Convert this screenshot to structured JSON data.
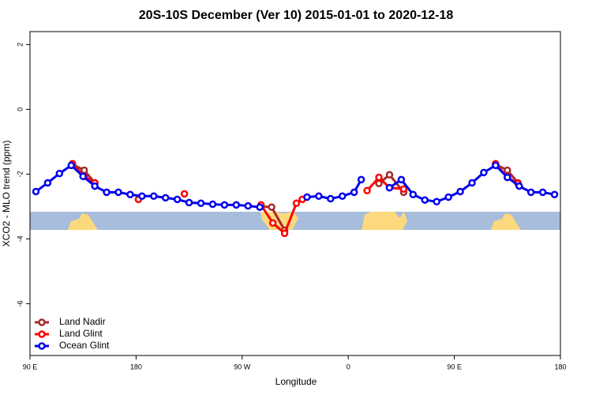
{
  "chart_data": {
    "type": "line",
    "title": "20S-10S December (Ver 10)   2015-01-01 to 2020-12-18",
    "x_label": "Longitude",
    "y_label": "XCO2 - MLO trend (ppm)",
    "xlim": [
      90,
      540
    ],
    "ylim": [
      -7.6,
      2.4
    ],
    "xticks": [
      {
        "value": 90,
        "label": "90 E"
      },
      {
        "value": 180,
        "label": "180"
      },
      {
        "value": 270,
        "label": "90 W"
      },
      {
        "value": 360,
        "label": "0"
      },
      {
        "value": 450,
        "label": "90 E"
      },
      {
        "value": 540,
        "label": "180"
      }
    ],
    "yticks": [
      2,
      0,
      -2,
      -4,
      -6
    ],
    "legend": "bottom-left",
    "series": [
      {
        "name": "Land Nadir",
        "color": "#a52a2a",
        "x": [
          126,
          136,
          145,
          200,
          286,
          295,
          306,
          350,
          386,
          395,
          407,
          450,
          485,
          495,
          504
        ],
        "values": [
          -1.7,
          -1.88,
          -2.27,
          null,
          -3.0,
          -3.02,
          -3.73,
          null,
          -2.29,
          -2.02,
          -2.56,
          null,
          -1.7,
          -1.88,
          -2.27
        ]
      },
      {
        "name": "Land Glint",
        "color": "#ff0000",
        "x": [
          126,
          136,
          145,
          160,
          182,
          200,
          221,
          250,
          286,
          296,
          306,
          316,
          321,
          350,
          376,
          386,
          395,
          407,
          450,
          485,
          495,
          504
        ],
        "values": [
          -1.68,
          -2.07,
          -2.27,
          null,
          -2.78,
          null,
          -2.61,
          null,
          -2.95,
          -3.51,
          -3.83,
          -2.9,
          -2.78,
          null,
          -2.51,
          -2.1,
          -2.42,
          -2.46,
          null,
          -1.68,
          -2.1,
          -2.29
        ]
      },
      {
        "name": "Ocean Glint",
        "color": "#0000ee",
        "x": [
          95,
          105,
          115,
          125,
          135,
          145,
          155,
          165,
          175,
          185,
          195,
          205,
          215,
          225,
          235,
          245,
          255,
          265,
          275,
          285,
          295,
          325,
          335,
          345,
          355,
          365,
          371,
          385,
          395,
          405,
          415,
          425,
          435,
          445,
          455,
          465,
          475,
          485,
          495,
          505,
          515,
          525,
          535
        ],
        "values": [
          -2.54,
          -2.27,
          -1.98,
          -1.73,
          -2.07,
          -2.37,
          -2.56,
          -2.56,
          -2.63,
          -2.68,
          -2.68,
          -2.73,
          -2.78,
          -2.88,
          -2.9,
          -2.93,
          -2.95,
          -2.95,
          -2.98,
          -3.02,
          null,
          -2.71,
          -2.68,
          -2.76,
          -2.68,
          -2.56,
          -2.17,
          null,
          -2.42,
          -2.17,
          -2.63,
          -2.8,
          -2.85,
          -2.71,
          -2.54,
          -2.27,
          -1.95,
          -1.73,
          -2.1,
          -2.37,
          -2.56,
          -2.56,
          -2.63
        ]
      }
    ]
  }
}
